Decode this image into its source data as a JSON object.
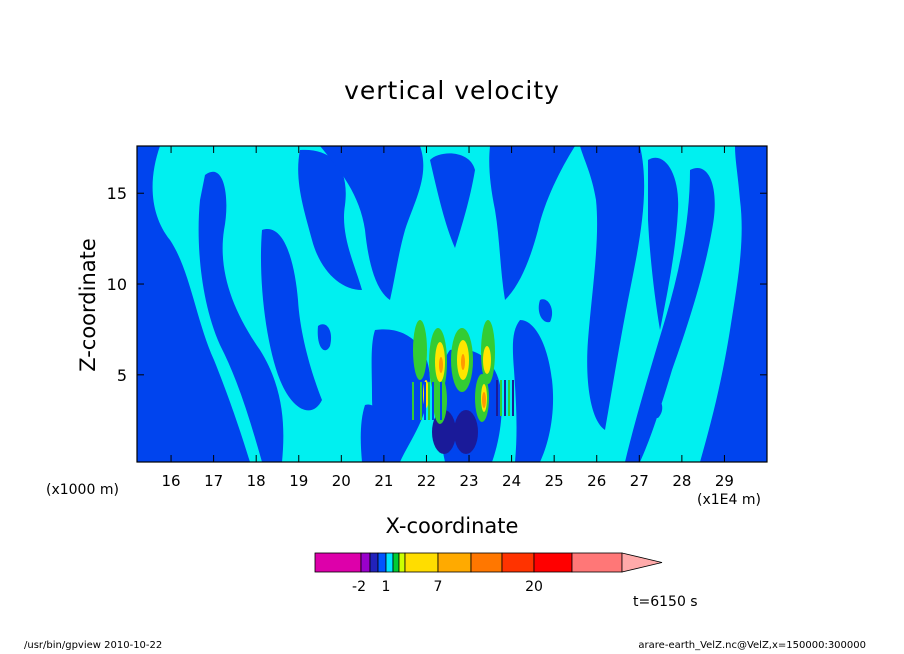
{
  "chart_data": {
    "type": "heatmap",
    "title": "vertical velocity",
    "xlabel": "X-coordinate",
    "ylabel": "Z-coordinate",
    "x_unit_label": "(x1E4 m)",
    "y_unit_label": "(x1000 m)",
    "xlim": [
      15.2,
      30.0
    ],
    "ylim": [
      0.2,
      17.6
    ],
    "x_ticks": [
      16,
      17,
      18,
      19,
      20,
      21,
      22,
      23,
      24,
      25,
      26,
      27,
      28,
      29
    ],
    "y_ticks": [
      5,
      10,
      15
    ],
    "colorbar": {
      "tick_labels": [
        "-2",
        "1",
        "7",
        "20"
      ],
      "levels": [
        -4,
        -2,
        -1,
        0,
        1,
        2,
        3,
        5,
        7,
        10,
        15,
        20,
        30
      ],
      "colors": [
        "#dd00aa",
        "#9900cc",
        "#2222bb",
        "#0055ff",
        "#00e5ff",
        "#00cc33",
        "#ccff00",
        "#ffdd00",
        "#ffaa00",
        "#ff7700",
        "#ff3300",
        "#ff0000",
        "#ff7777",
        "#ffaaaa"
      ]
    },
    "legend_position": "bottom"
  },
  "annotations": {
    "time": "t=6150 s",
    "footer_left": "/usr/bin/gpview   2010-10-22",
    "footer_right": "arare-earth_VelZ.nc@VelZ,x=150000:300000"
  },
  "colors": {
    "background": "#00f0f0",
    "negative": "#0044ee",
    "strong_negative": "#1a1a99",
    "green": "#33cc33",
    "yellow": "#ffe600",
    "orange": "#ff9900"
  }
}
